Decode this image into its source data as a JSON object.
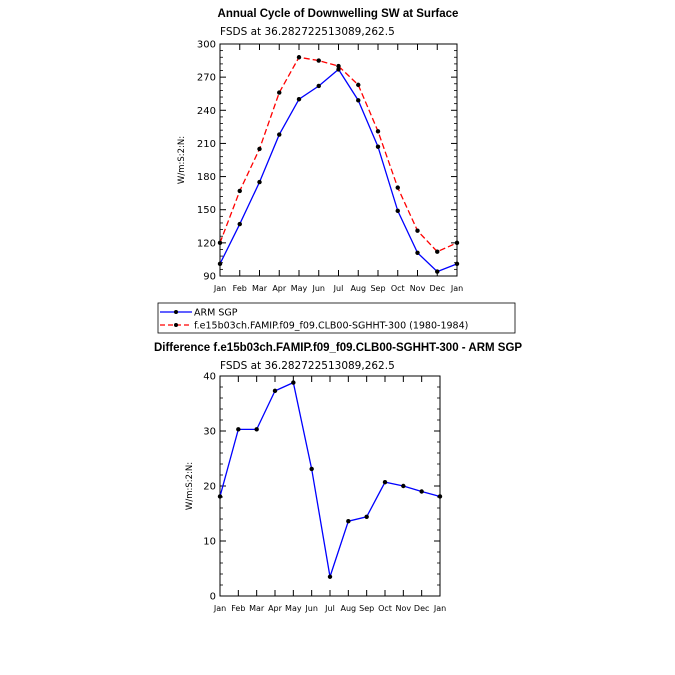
{
  "chart_data": [
    {
      "type": "line",
      "title": "Annual Cycle of Downwelling SW at Surface",
      "subtitle": "FSDS  at  36.282722513089,262.5",
      "ylabel": "W/m:S:2:N:",
      "xlabel": "",
      "categories": [
        "Jan",
        "Feb",
        "Mar",
        "Apr",
        "May",
        "Jun",
        "Jul",
        "Aug",
        "Sep",
        "Oct",
        "Nov",
        "Dec",
        "Jan"
      ],
      "ylim": [
        90,
        300
      ],
      "yticks": [
        90,
        120,
        150,
        180,
        210,
        240,
        270,
        300
      ],
      "series": [
        {
          "name": "ARM SGP",
          "color": "#0000ff",
          "dash": "solid",
          "values": [
            101,
            137,
            175,
            218,
            250,
            262,
            277,
            249,
            207,
            149,
            111,
            94,
            101
          ]
        },
        {
          "name": "f.e15b03ch.FAMIP.f09_f09.CLB00-SGHHT-300 (1980-1984)",
          "color": "#ff0000",
          "dash": "dashed",
          "values": [
            120,
            167,
            205,
            256,
            288,
            285,
            280,
            263,
            221,
            170,
            131,
            112,
            120
          ]
        }
      ],
      "legend": "below"
    },
    {
      "type": "line",
      "title": "Difference f.e15b03ch.FAMIP.f09_f09.CLB00-SGHHT-300 - ARM SGP",
      "subtitle": "FSDS  at  36.282722513089,262.5",
      "ylabel": "W/m:S:2:N:",
      "xlabel": "",
      "categories": [
        "Jan",
        "Feb",
        "Mar",
        "Apr",
        "May",
        "Jun",
        "Jul",
        "Aug",
        "Sep",
        "Oct",
        "Nov",
        "Dec",
        "Jan"
      ],
      "ylim": [
        0,
        40
      ],
      "yticks": [
        0,
        10,
        20,
        30,
        40
      ],
      "series": [
        {
          "color": "#0000ff",
          "dash": "solid",
          "values": [
            18.1,
            30.3,
            30.3,
            37.3,
            38.8,
            23.1,
            3.5,
            13.6,
            14.4,
            20.7,
            20.0,
            19.0,
            18.1
          ]
        }
      ]
    }
  ]
}
